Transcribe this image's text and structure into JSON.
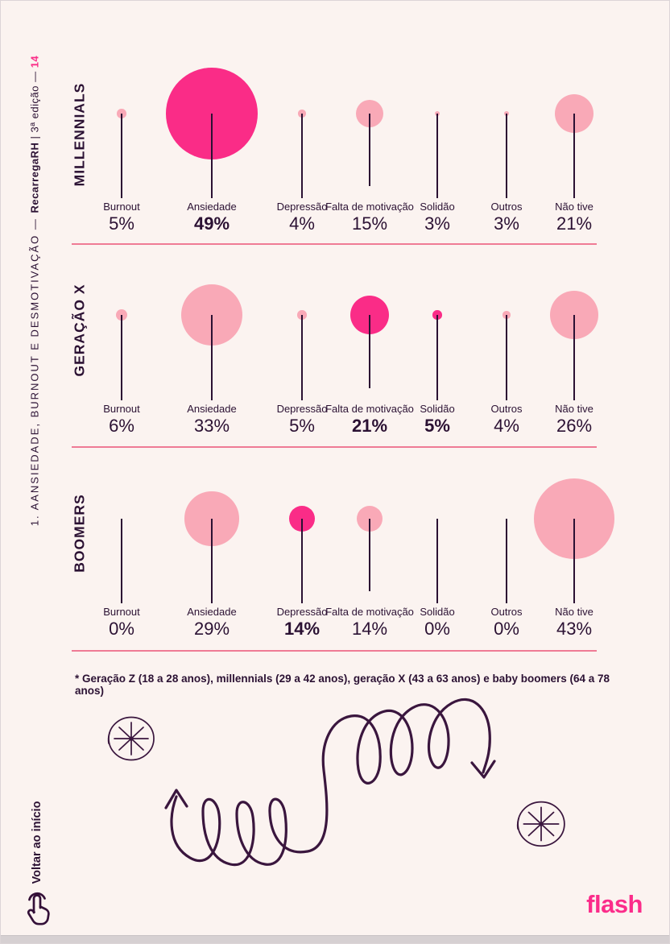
{
  "sidebar": {
    "title_prefix": "1. AANSIEDADE, BURNOUT E DESMOTIVAÇÃO — ",
    "brand": "RecarregaRH",
    "edition": " | 3ª edição — ",
    "page_number": "14",
    "back_link_label": "Voltar ao início"
  },
  "footnote_text": "* Geração Z (18 a 28 anos), millennials (29 a 42 anos), geração X (43 a 63 anos) e baby boomers (64 a 78 anos)",
  "footer": {
    "logo_text": "flash"
  },
  "colors": {
    "highlight_pink": "#FA2C87",
    "soft_pink": "#F9A9B7",
    "divider_pink": "#EF7B95",
    "ink": "#2B1133",
    "background": "#FBF3F0"
  },
  "chart_data": {
    "type": "bubble",
    "unit": "%",
    "note": "lollipop bubble chart, bubble area/radius grows with value; hot pink marks highlighted values",
    "categories": [
      "Burnout",
      "Ansiedade",
      "Depressão",
      "Falta de motivação",
      "Solidão",
      "Outros",
      "Não tive"
    ],
    "series": [
      {
        "name": "MILLENNIALS",
        "values": [
          5,
          49,
          4,
          15,
          3,
          3,
          21
        ],
        "highlighted_categories": [
          "Ansiedade"
        ]
      },
      {
        "name": "GERAÇÃO X",
        "values": [
          6,
          33,
          5,
          21,
          5,
          4,
          26
        ],
        "highlighted_categories": [
          "Falta de motivação",
          "Solidão"
        ]
      },
      {
        "name": "BOOMERS",
        "values": [
          0,
          29,
          14,
          14,
          0,
          0,
          43
        ],
        "highlighted_categories": [
          "Depressão"
        ]
      }
    ]
  }
}
